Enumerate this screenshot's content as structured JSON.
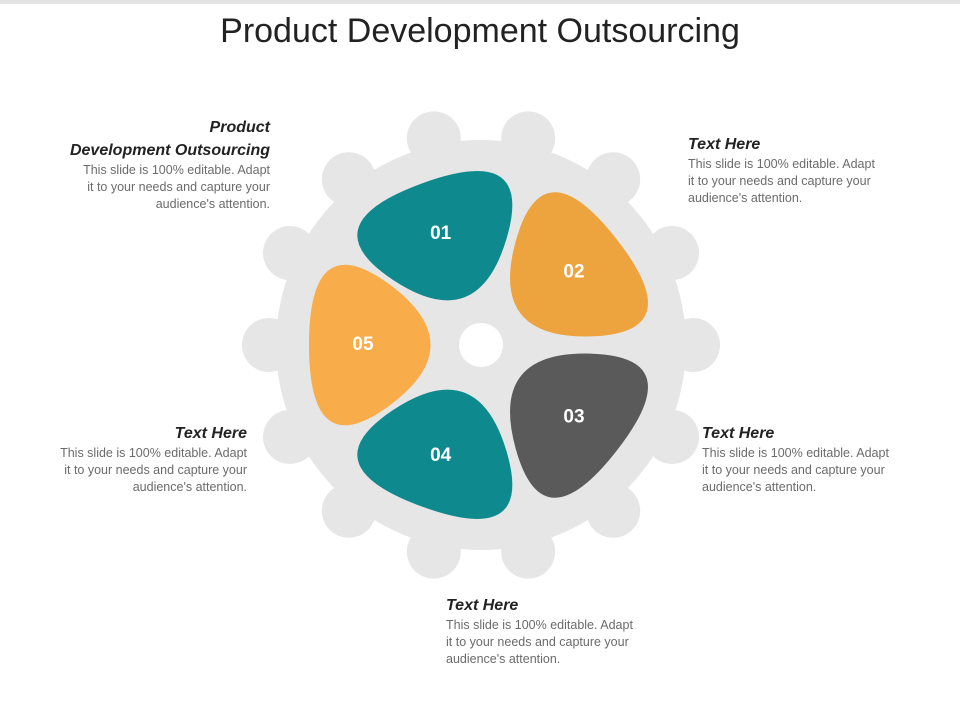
{
  "title": "Product Development Outsourcing",
  "segments": [
    {
      "number": "01"
    },
    {
      "number": "02"
    },
    {
      "number": "03"
    },
    {
      "number": "04"
    },
    {
      "number": "05"
    }
  ],
  "callouts": [
    {
      "heading_lines": [
        "Product",
        "Development Outsourcing"
      ],
      "body_lines": [
        "This slide is 100% editable. Adapt",
        "it to your needs and capture your",
        "audience's attention."
      ]
    },
    {
      "heading_lines": [
        "Text Here"
      ],
      "body_lines": [
        "This slide is 100% editable. Adapt",
        "it to your needs and capture your",
        "audience's attention."
      ]
    },
    {
      "heading_lines": [
        "Text Here"
      ],
      "body_lines": [
        "This slide is 100% editable. Adapt",
        "it to your needs and capture your",
        "audience's attention."
      ]
    },
    {
      "heading_lines": [
        "Text Here"
      ],
      "body_lines": [
        "This slide is 100% editable. Adapt",
        "it to your needs and capture your",
        "audience's attention."
      ]
    },
    {
      "heading_lines": [
        "Text Here"
      ],
      "body_lines": [
        "This slide is 100% editable. Adapt",
        "it to your needs and capture your",
        "audience's attention."
      ]
    }
  ]
}
